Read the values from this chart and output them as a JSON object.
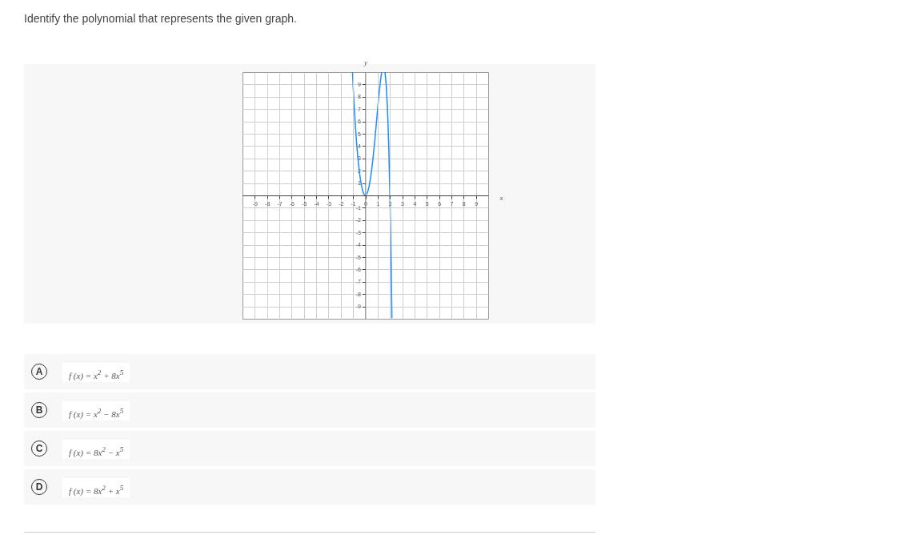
{
  "chart_data": {
    "type": "line",
    "title": "Identify the polynomial that represents the given graph.",
    "xlabel": "x",
    "ylabel": "y",
    "x": [
      -1.045,
      -1,
      -0.9,
      -0.8,
      -0.7,
      -0.6,
      -0.5,
      -0.4,
      -0.3,
      -0.2,
      -0.1,
      0,
      0.1,
      0.2,
      0.3,
      0.4,
      0.5,
      0.6,
      0.7,
      0.8,
      0.9,
      1.0,
      1.1,
      1.2,
      1.3,
      1.33,
      1.47,
      1.6,
      1.7,
      1.8,
      1.9,
      2.0,
      2.05,
      2.1,
      2.15,
      2.163
    ],
    "series": [
      {
        "color": "#1a8cff",
        "values": [
          9.98,
          9,
          7.07,
          5.45,
          4.09,
          2.96,
          2.03,
          1.29,
          0.72,
          0.32,
          0.08,
          0,
          0.08,
          0.32,
          0.72,
          1.27,
          1.97,
          2.8,
          3.75,
          4.79,
          5.89,
          7,
          8.07,
          9.03,
          9.81,
          9.99,
          null,
          9.99,
          8.92,
          7.02,
          4.12,
          0,
          -2.58,
          -5.56,
          -8.96,
          -9.92
        ]
      }
    ],
    "xlim": [
      -10,
      10
    ],
    "ylim": [
      -10,
      10
    ],
    "xticks": [
      -9,
      -8,
      -7,
      -6,
      -5,
      -4,
      -3,
      -2,
      -1,
      0,
      1,
      2,
      3,
      4,
      5,
      6,
      7,
      8,
      9
    ],
    "yticks": [
      -9,
      -8,
      -7,
      -6,
      -5,
      -4,
      -3,
      -2,
      -1,
      1,
      2,
      3,
      4,
      5,
      6,
      7,
      8,
      9
    ],
    "grid": true,
    "marker": "none",
    "line_style": "solid",
    "annotations": [
      "A",
      "f (x) = x$^{2}$ + 8x$^{5}$",
      "B",
      "f (x) = x$^{2}$ − 8x$^{5}$",
      "C",
      "f (x) = 8x$^{2}$ − x$^{5}$",
      "D",
      "f (x) = 8x$^{2}$ + x$^{5}$"
    ]
  }
}
